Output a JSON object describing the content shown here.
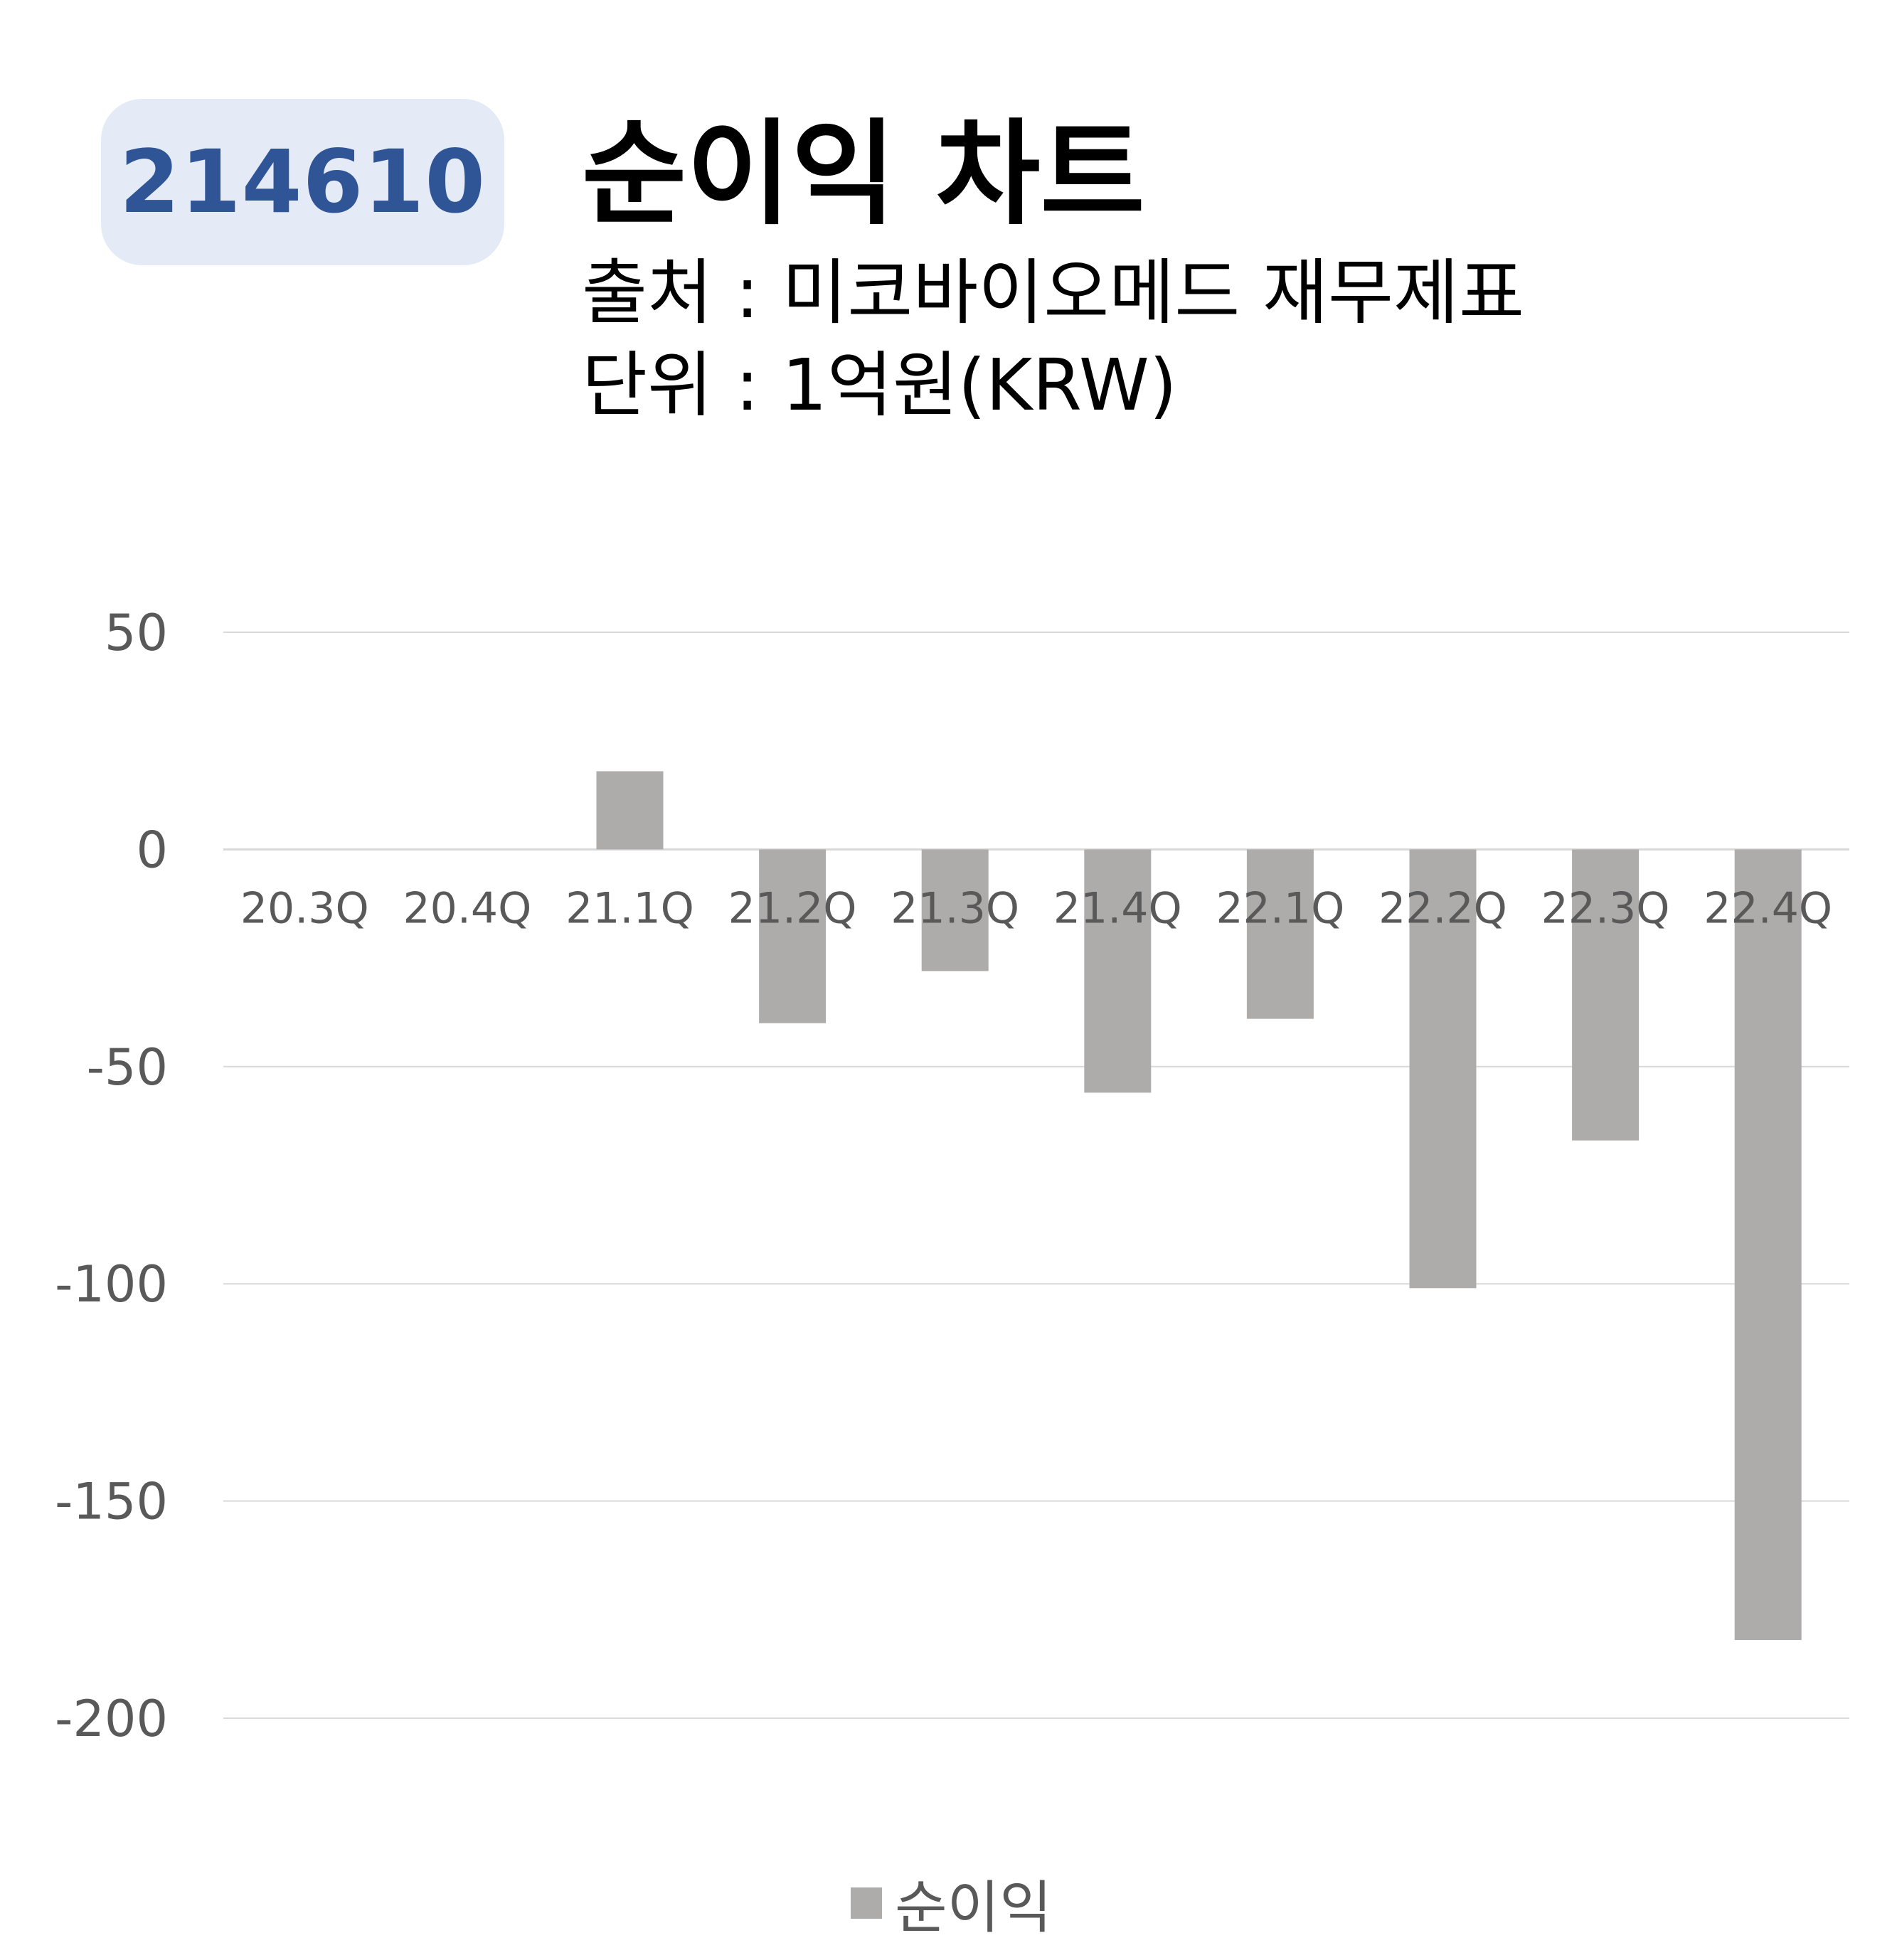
{
  "badge": {
    "code": "214610"
  },
  "header": {
    "title": "순이익 차트",
    "source": "출처 : 미코바이오메드 재무제표",
    "unit": "단위 : 1억원(KRW)"
  },
  "chart_data": {
    "type": "bar",
    "title": "순이익 차트",
    "categories": [
      "20.3Q",
      "20.4Q",
      "21.1Q",
      "21.2Q",
      "21.3Q",
      "21.4Q",
      "22.1Q",
      "22.2Q",
      "22.3Q",
      "22.4Q"
    ],
    "series": [
      {
        "name": "순이익",
        "values": [
          0,
          0,
          18,
          -40,
          -28,
          -56,
          -39,
          -101,
          -67,
          -182
        ],
        "color": "#aeabab"
      }
    ],
    "ylim": [
      -200,
      50
    ],
    "yticks": [
      50,
      0,
      -50,
      -100,
      -150,
      -200
    ],
    "grid": true,
    "legend_position": "bottom"
  }
}
